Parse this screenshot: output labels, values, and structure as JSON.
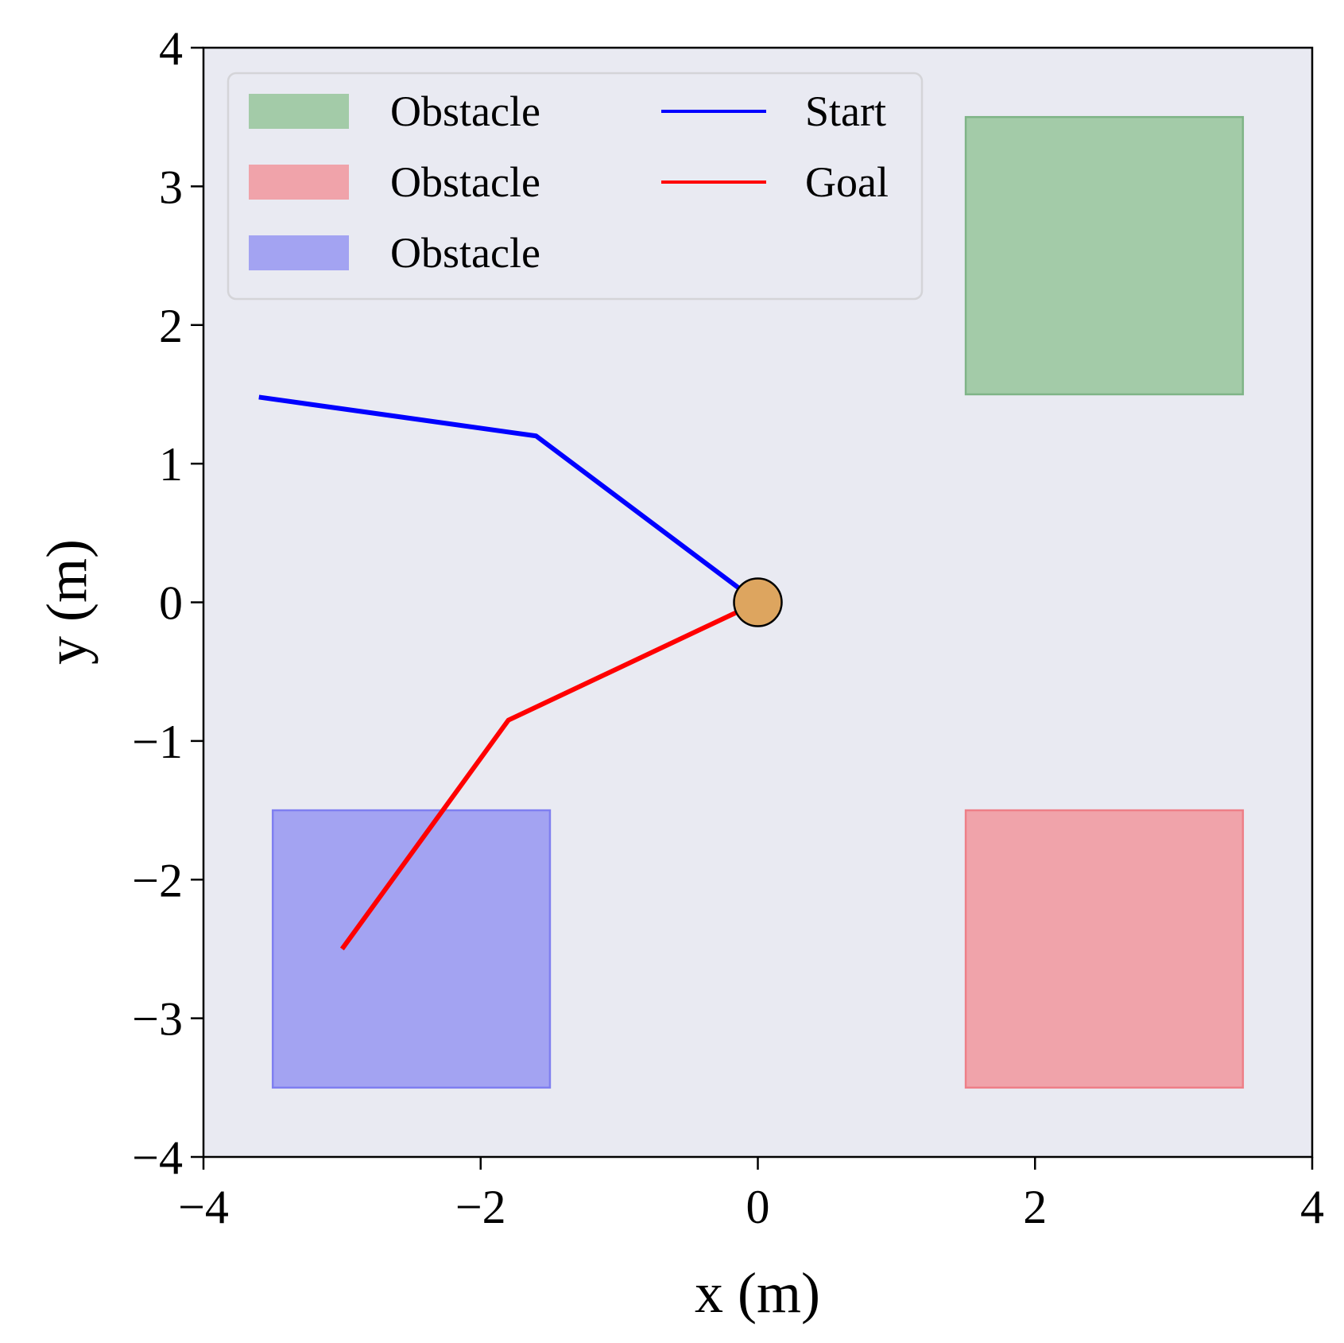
{
  "chart_data": {
    "type": "line",
    "xlabel": "x (m)",
    "ylabel": "y (m)",
    "xlim": [
      -4,
      4
    ],
    "ylim": [
      -4,
      4
    ],
    "xticks": [
      -4,
      -2,
      0,
      2,
      4
    ],
    "xtick_labels": [
      "−4",
      "−2",
      "0",
      "2",
      "4"
    ],
    "yticks": [
      -4,
      -3,
      -2,
      -1,
      0,
      1,
      2,
      3,
      4
    ],
    "ytick_labels": [
      "−4",
      "−3",
      "−2",
      "−1",
      "0",
      "1",
      "2",
      "3",
      "4"
    ],
    "grid": false,
    "background_color": "#e9eaf2",
    "legend_position": "top-left",
    "obstacles": [
      {
        "label": "Obstacle",
        "x": [
          1.5,
          3.5
        ],
        "y": [
          1.5,
          3.5
        ],
        "fill": "#a3cba8",
        "edge": "#7fb487"
      },
      {
        "label": "Obstacle",
        "x": [
          1.5,
          3.5
        ],
        "y": [
          -3.5,
          -1.5
        ],
        "fill": "#f0a3aa",
        "edge": "#ee7f88"
      },
      {
        "label": "Obstacle",
        "x": [
          -3.5,
          -1.5
        ],
        "y": [
          -3.5,
          -1.5
        ],
        "fill": "#a3a3f2",
        "edge": "#7f7ff0"
      }
    ],
    "series": [
      {
        "name": "Start",
        "color": "#0000ff",
        "x": [
          -3.6,
          -1.6,
          0.0
        ],
        "y": [
          1.48,
          1.2,
          0.0
        ]
      },
      {
        "name": "Goal",
        "color": "#ff0000",
        "x": [
          -3.0,
          -1.8,
          0.0
        ],
        "y": [
          -2.5,
          -0.85,
          0.0
        ]
      }
    ],
    "marker": {
      "x": 0,
      "y": 0,
      "color": "#dda55f",
      "edge": "#000000"
    }
  }
}
